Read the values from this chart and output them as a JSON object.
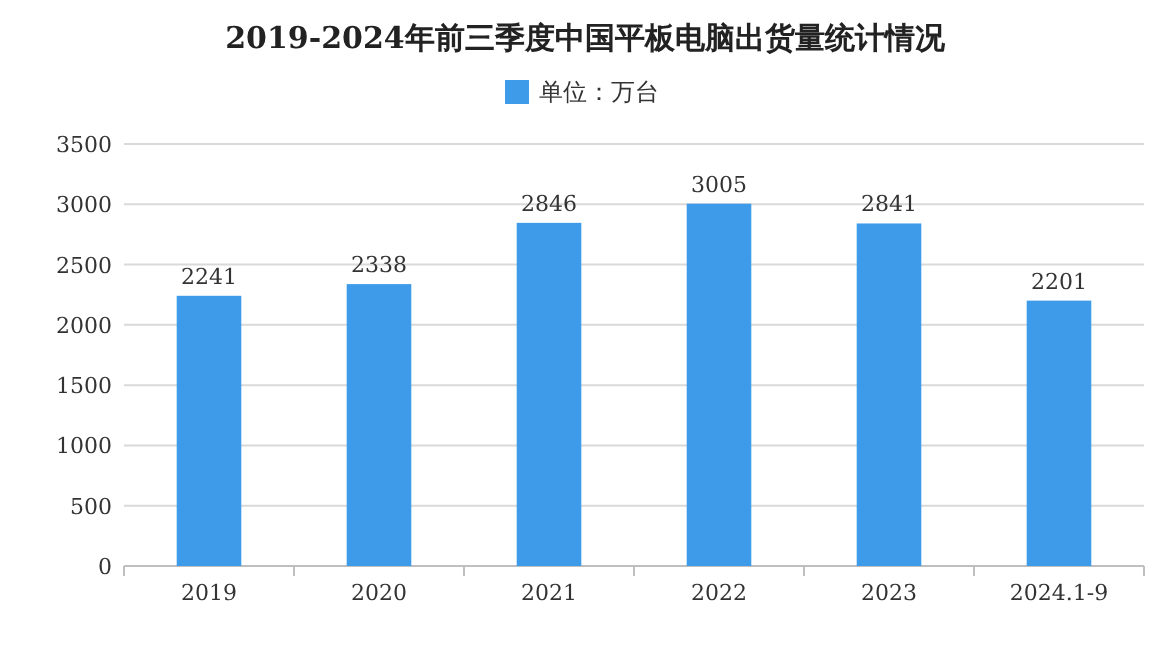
{
  "chart_data": {
    "type": "bar",
    "title": "2019-2024年前三季度中国平板电脑出货量统计情况",
    "categories": [
      "2019",
      "2020",
      "2021",
      "2022",
      "2023",
      "2024.1-9"
    ],
    "series": [
      {
        "name": "单位：万台",
        "color": "#3d9be9",
        "values": [
          2241,
          2338,
          2846,
          3005,
          2841,
          2201
        ]
      }
    ],
    "ylim": [
      0,
      3500
    ],
    "yticks": [
      0,
      500,
      1000,
      1500,
      2000,
      2500,
      3000,
      3500
    ],
    "grid": "y",
    "legend": "top",
    "data_labels": true
  }
}
